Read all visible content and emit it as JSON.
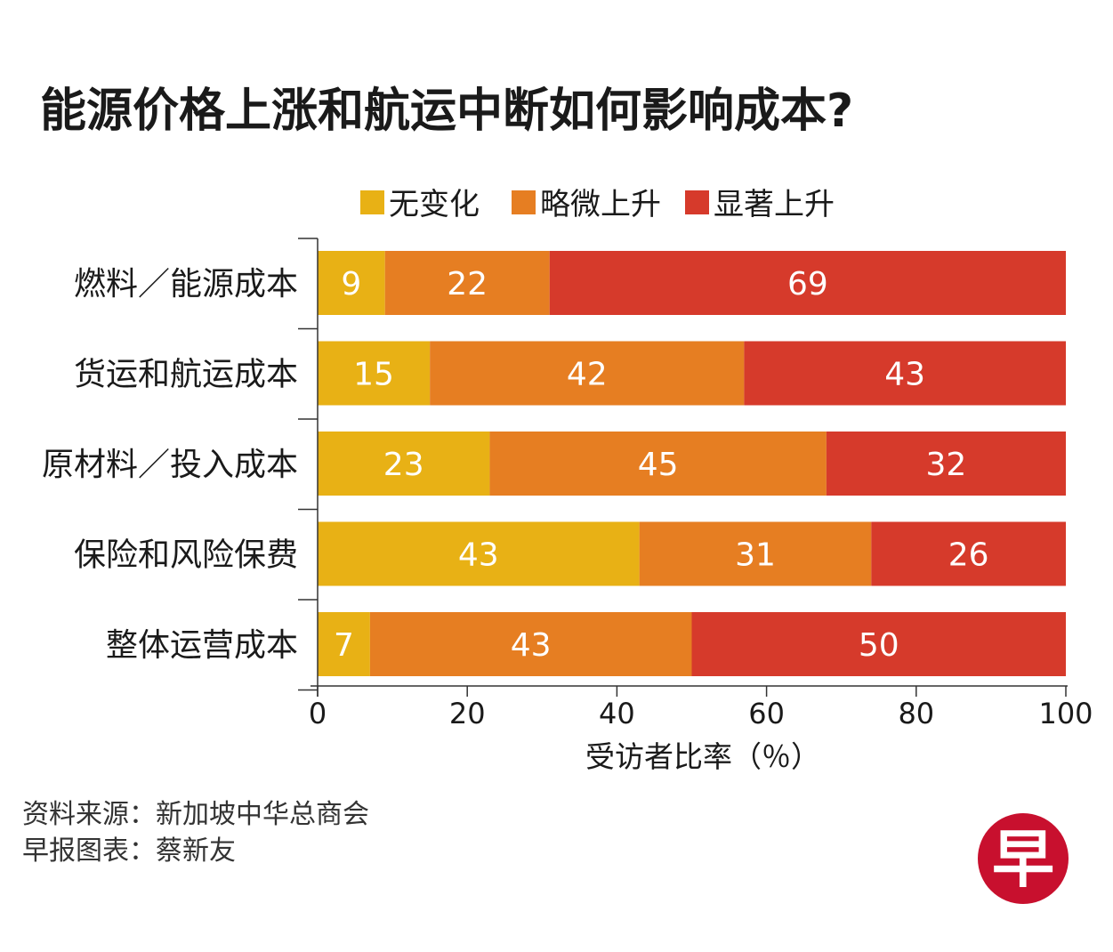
{
  "title": "能源价格上涨和航运中断如何影响成本?",
  "chart_data": {
    "type": "bar",
    "orientation": "horizontal",
    "stacked": true,
    "categories": [
      "燃料／能源成本",
      "货运和航运成本",
      "原材料／投入成本",
      "保险和风险保费",
      "整体运营成本"
    ],
    "series": [
      {
        "name": "无变化",
        "color": "#e8b115",
        "values": [
          9,
          15,
          23,
          43,
          7
        ]
      },
      {
        "name": "略微上升",
        "color": "#e67e22",
        "values": [
          22,
          42,
          45,
          31,
          43
        ]
      },
      {
        "name": "显著上升",
        "color": "#d63a2b",
        "values": [
          69,
          43,
          32,
          26,
          50
        ]
      }
    ],
    "xlim": [
      0,
      100
    ],
    "xticks": [
      0,
      20,
      40,
      60,
      80,
      100
    ],
    "xlabel": "受访者比率（％）",
    "legend_position": "top",
    "grid": false
  },
  "footer": {
    "source_line": "资料来源：新加坡中华总商会",
    "credit_line": "早报图表：蔡新友"
  },
  "logo": {
    "text": "早",
    "color": "#c8102e"
  }
}
